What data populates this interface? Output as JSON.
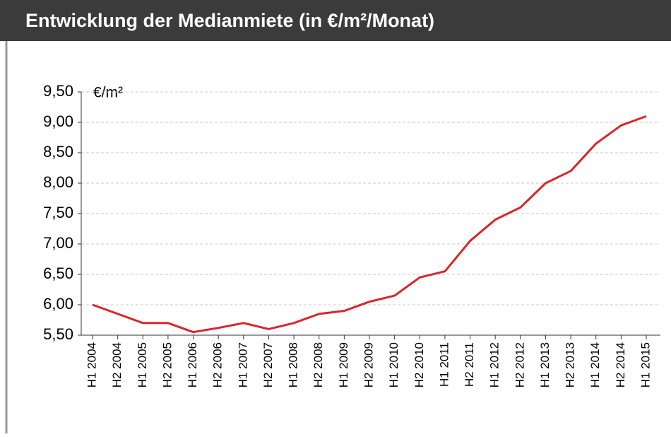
{
  "chart_data": {
    "type": "line",
    "title": "Entwicklung der Medianmiete (in €/m²/Monat)",
    "y_label": "€/m²",
    "categories": [
      "H1 2004",
      "H2 2004",
      "H1 2005",
      "H2 2005",
      "H1 2006",
      "H2 2006",
      "H1 2007",
      "H2 2007",
      "H1 2008",
      "H2 2008",
      "H1 2009",
      "H2 2009",
      "H1 2010",
      "H2 2010",
      "H1 2011",
      "H2 2011",
      "H1 2012",
      "H2 2012",
      "H1 2013",
      "H2 2013",
      "H1 2014",
      "H2 2014",
      "H1 2015"
    ],
    "series": [
      {
        "name": "Medianmiete",
        "color": "#d9262b",
        "values": [
          6.0,
          5.85,
          5.7,
          5.7,
          5.55,
          5.62,
          5.7,
          5.6,
          5.7,
          5.85,
          5.9,
          6.05,
          6.15,
          6.45,
          6.55,
          7.05,
          7.4,
          7.6,
          8.0,
          8.2,
          8.65,
          8.95,
          9.1
        ]
      }
    ],
    "ylim": [
      5.5,
      9.5
    ],
    "yticks": [
      {
        "value": 5.5,
        "label": "5,50"
      },
      {
        "value": 6,
        "label": "6,00"
      },
      {
        "value": 6.5,
        "label": "6,50"
      },
      {
        "value": 7,
        "label": "7,00"
      },
      {
        "value": 7.5,
        "label": "7,50"
      },
      {
        "value": 8,
        "label": "8,00"
      },
      {
        "value": 8.5,
        "label": "8,50"
      },
      {
        "value": 9,
        "label": "9,00"
      },
      {
        "value": 9.5,
        "label": "9,50"
      }
    ],
    "grid": true
  }
}
